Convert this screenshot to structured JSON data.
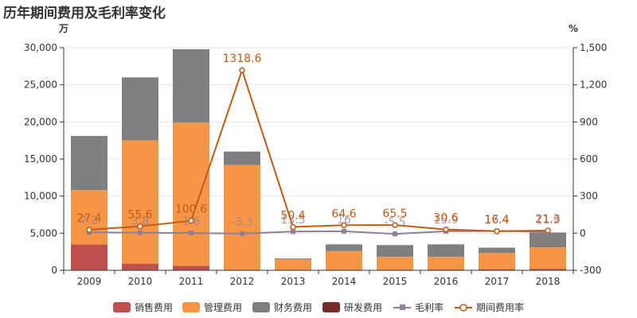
{
  "title": "历年期间费用及毛利率变化",
  "chart_data": {
    "type": "bar",
    "categories": [
      "2009",
      "2010",
      "2011",
      "2012",
      "2013",
      "2014",
      "2015",
      "2016",
      "2017",
      "2018"
    ],
    "y_left_unit": "万",
    "y_right_unit": "%",
    "y_left_ticks": [
      "0",
      "5,000",
      "10,000",
      "15,000",
      "20,000",
      "25,000",
      "30,000"
    ],
    "y_right_ticks": [
      "-300",
      "0",
      "300",
      "600",
      "900",
      "1,200",
      "1,500"
    ],
    "ylim_left": [
      0,
      30000
    ],
    "ylim_right": [
      -300,
      1500
    ],
    "stack_series": [
      {
        "name": "销售费用",
        "color": "#c0504d",
        "values": [
          3500,
          900,
          600,
          0,
          0,
          0,
          0,
          100,
          150,
          200
        ]
      },
      {
        "name": "管理费用",
        "color": "#f79646",
        "values": [
          7300,
          16600,
          19300,
          14200,
          1500,
          2600,
          1800,
          1700,
          2200,
          2900
        ]
      },
      {
        "name": "财务费用",
        "color": "#7f7f7f",
        "values": [
          7300,
          8500,
          9900,
          1800,
          100,
          900,
          1600,
          1700,
          700,
          2000
        ]
      },
      {
        "name": "研发费用",
        "color": "#772c2a",
        "values": [
          0,
          0,
          0,
          0,
          0,
          0,
          0,
          0,
          0,
          0
        ]
      }
    ],
    "line_series": [
      {
        "name": "毛利率",
        "color": "#8f7f9a",
        "marker": "square",
        "values": [
          7.3,
          3.8,
          1.6,
          -3.3,
          13.5,
          16,
          -5.5,
          15.9,
          17.4,
          11.9
        ],
        "labels": [
          "7.3",
          "3.8",
          "1.6",
          "-3.3",
          "13.5",
          "16",
          "-5.5",
          "15.9",
          "17.4",
          "11.9"
        ]
      },
      {
        "name": "期间费用率",
        "color": "#c55a11",
        "marker": "circle",
        "values": [
          27.4,
          55.6,
          100.6,
          1318.6,
          50.4,
          64.6,
          65.5,
          30.6,
          16.4,
          21.3
        ],
        "labels": [
          "27.4",
          "55.6",
          "100.6",
          "1318.6",
          "50.4",
          "64.6",
          "65.5",
          "30.6",
          "16.4",
          "21.3"
        ]
      }
    ],
    "grid": true,
    "legend_position": "bottom"
  }
}
